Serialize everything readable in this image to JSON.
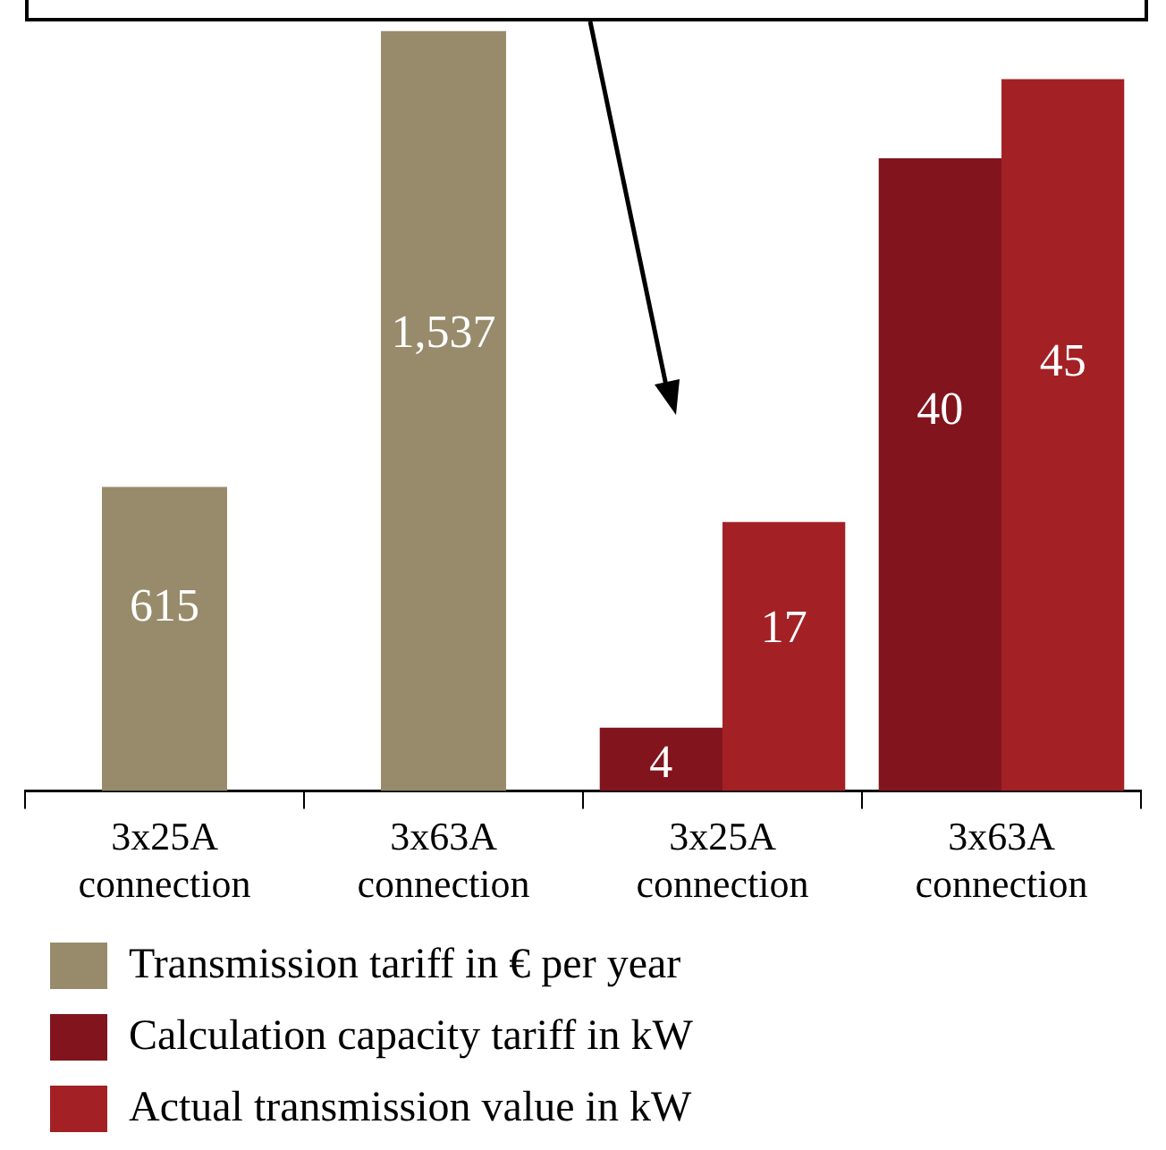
{
  "chart_data": {
    "type": "bar",
    "categories": [
      "3x25A connection",
      "3x63A connection",
      "3x25A connection",
      "3x63A connection"
    ],
    "series": [
      {
        "name": "Transmission tariff in € per year",
        "color": "#988b6b",
        "values": [
          615,
          1537,
          null,
          null
        ],
        "value_labels": [
          "615",
          "1,537",
          null,
          null
        ],
        "axis": "y"
      },
      {
        "name": "Calculation capacity tariff in kW",
        "color": "#82141e",
        "values": [
          null,
          null,
          4,
          40
        ],
        "value_labels": [
          null,
          null,
          "4",
          "40"
        ],
        "axis": "y2"
      },
      {
        "name": "Actual transmission value in kW",
        "color": "#a32124",
        "values": [
          null,
          null,
          17,
          45
        ],
        "value_labels": [
          null,
          null,
          "17",
          "45"
        ],
        "axis": "y2"
      }
    ],
    "legend": "bottom",
    "tick_labels": "x"
  }
}
